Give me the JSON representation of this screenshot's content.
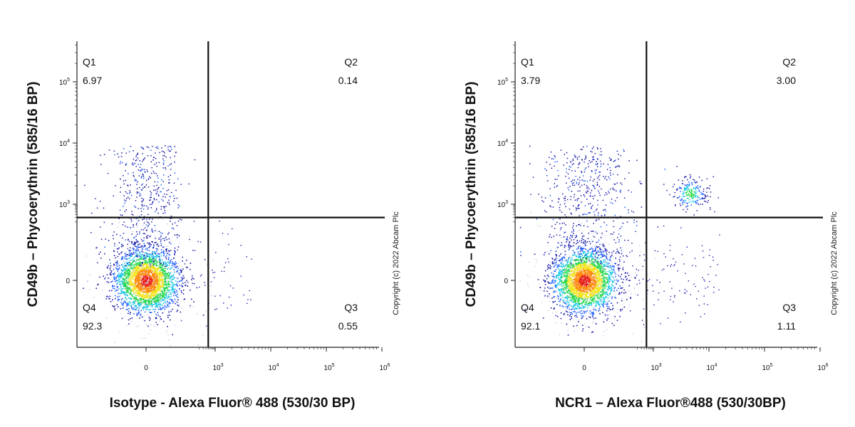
{
  "chart_data": [
    {
      "type": "scatter",
      "subtype": "flow-cytometry-density-dot-plot",
      "xlabel": "Isotype - Alexa Fluor® 488 (530/30 BP)",
      "ylabel": "CD49b – Phycoerythrin (585/16 BP)",
      "copyright": "Copyright (c) 2022 Abcam Plc",
      "x_scale": "biexponential",
      "y_scale": "biexponential",
      "x_ticks": [
        {
          "base": "0",
          "exp": ""
        },
        {
          "base": "10",
          "exp": "3"
        },
        {
          "base": "10",
          "exp": "4"
        },
        {
          "base": "10",
          "exp": "5"
        },
        {
          "base": "10",
          "exp": "6"
        }
      ],
      "y_ticks": [
        {
          "base": "0",
          "exp": ""
        },
        {
          "base": "10",
          "exp": "3"
        },
        {
          "base": "10",
          "exp": "4"
        },
        {
          "base": "10",
          "exp": "5"
        }
      ],
      "x_gate": 500,
      "y_gate": 300,
      "quadrants": [
        {
          "name": "Q1",
          "value": "6.97"
        },
        {
          "name": "Q2",
          "value": "0.14"
        },
        {
          "name": "Q3",
          "value": "0.55"
        },
        {
          "name": "Q4",
          "value": "92.3"
        }
      ],
      "populations": [
        {
          "x": 0,
          "y": 0,
          "share": 0.9
        },
        {
          "x": 0,
          "y": 1500,
          "share": 0.08
        }
      ],
      "colormap": [
        "#1a1aa8",
        "#1b5cff",
        "#19c8e6",
        "#22d84a",
        "#f2e31a",
        "#ff8a10",
        "#e8201a"
      ]
    },
    {
      "type": "scatter",
      "subtype": "flow-cytometry-density-dot-plot",
      "xlabel": "NCR1 – Alexa Fluor®488 (530/30BP)",
      "ylabel": "CD49b – Phycoerythrin (585/16 BP)",
      "copyright": "Copyright (c) 2022 Abcam Plc",
      "x_scale": "biexponential",
      "y_scale": "biexponential",
      "x_ticks": [
        {
          "base": "0",
          "exp": ""
        },
        {
          "base": "10",
          "exp": "3"
        },
        {
          "base": "10",
          "exp": "4"
        },
        {
          "base": "10",
          "exp": "5"
        },
        {
          "base": "10",
          "exp": "6"
        }
      ],
      "y_ticks": [
        {
          "base": "0",
          "exp": ""
        },
        {
          "base": "10",
          "exp": "3"
        },
        {
          "base": "10",
          "exp": "4"
        },
        {
          "base": "10",
          "exp": "5"
        }
      ],
      "x_gate": 500,
      "y_gate": 300,
      "quadrants": [
        {
          "name": "Q1",
          "value": "3.79"
        },
        {
          "name": "Q2",
          "value": "3.00"
        },
        {
          "name": "Q3",
          "value": "1.11"
        },
        {
          "name": "Q4",
          "value": "92.1"
        }
      ],
      "populations": [
        {
          "x": 0,
          "y": 0,
          "share": 0.9
        },
        {
          "x": 0,
          "y": 1200,
          "share": 0.04
        },
        {
          "x": 4500,
          "y": 1500,
          "share": 0.03
        }
      ],
      "colormap": [
        "#1a1aa8",
        "#1b5cff",
        "#19c8e6",
        "#22d84a",
        "#f2e31a",
        "#ff8a10",
        "#e8201a"
      ]
    }
  ]
}
